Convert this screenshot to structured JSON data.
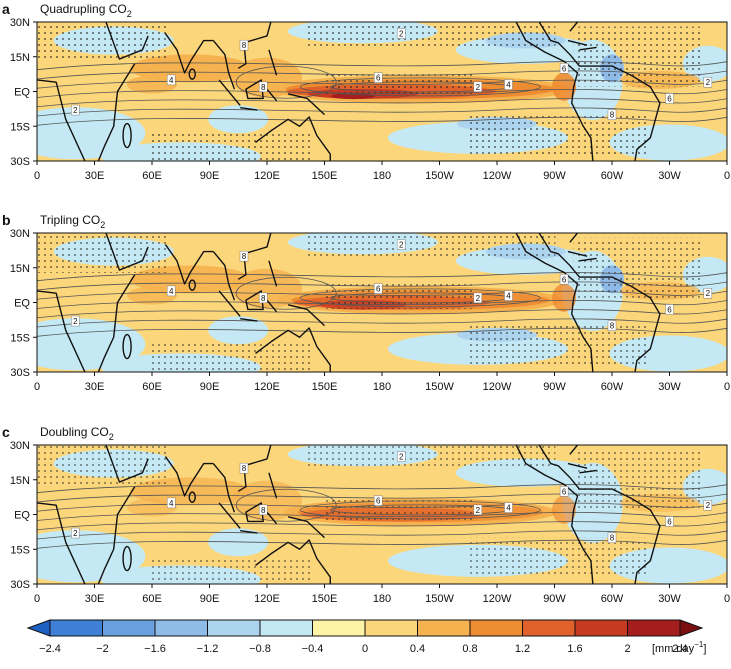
{
  "panels": [
    {
      "letter": "a",
      "title_main": "Quadrupling CO",
      "title_sub": "2",
      "intensity": 1.0
    },
    {
      "letter": "b",
      "title_main": "Tripling CO",
      "title_sub": "2",
      "intensity": 0.78
    },
    {
      "letter": "c",
      "title_main": "Doubling CO",
      "title_sub": "2",
      "intensity": 0.55
    }
  ],
  "axes": {
    "lat_labels": [
      "30N",
      "15N",
      "EQ",
      "15S",
      "30S"
    ],
    "lon_labels": [
      "0",
      "30E",
      "60E",
      "90E",
      "120E",
      "150E",
      "180",
      "150W",
      "120W",
      "90W",
      "60W",
      "30W",
      "0"
    ]
  },
  "contour_labels": [
    "2",
    "4",
    "6",
    "8"
  ],
  "colorbar": {
    "labels": [
      "−2.4",
      "−2",
      "−1.6",
      "−1.2",
      "−0.8",
      "−0.4",
      "0",
      "0.4",
      "0.8",
      "1.2",
      "1.6",
      "2",
      "2.4"
    ],
    "unit_main": "[mm day",
    "unit_sup": "−1",
    "unit_end": "]",
    "colors": [
      "#1f5fc4",
      "#3f7fd6",
      "#6a9fe0",
      "#8fbbe9",
      "#add4ef",
      "#c4e9f5",
      "#fef3a6",
      "#fbd67a",
      "#f6b24e",
      "#ee8c32",
      "#e0622a",
      "#c73a22",
      "#a51d1d",
      "#7a0f10"
    ]
  },
  "styles": {
    "land_color": "#111111",
    "contour_color": "#555555",
    "stipple_color": "#222222"
  }
}
